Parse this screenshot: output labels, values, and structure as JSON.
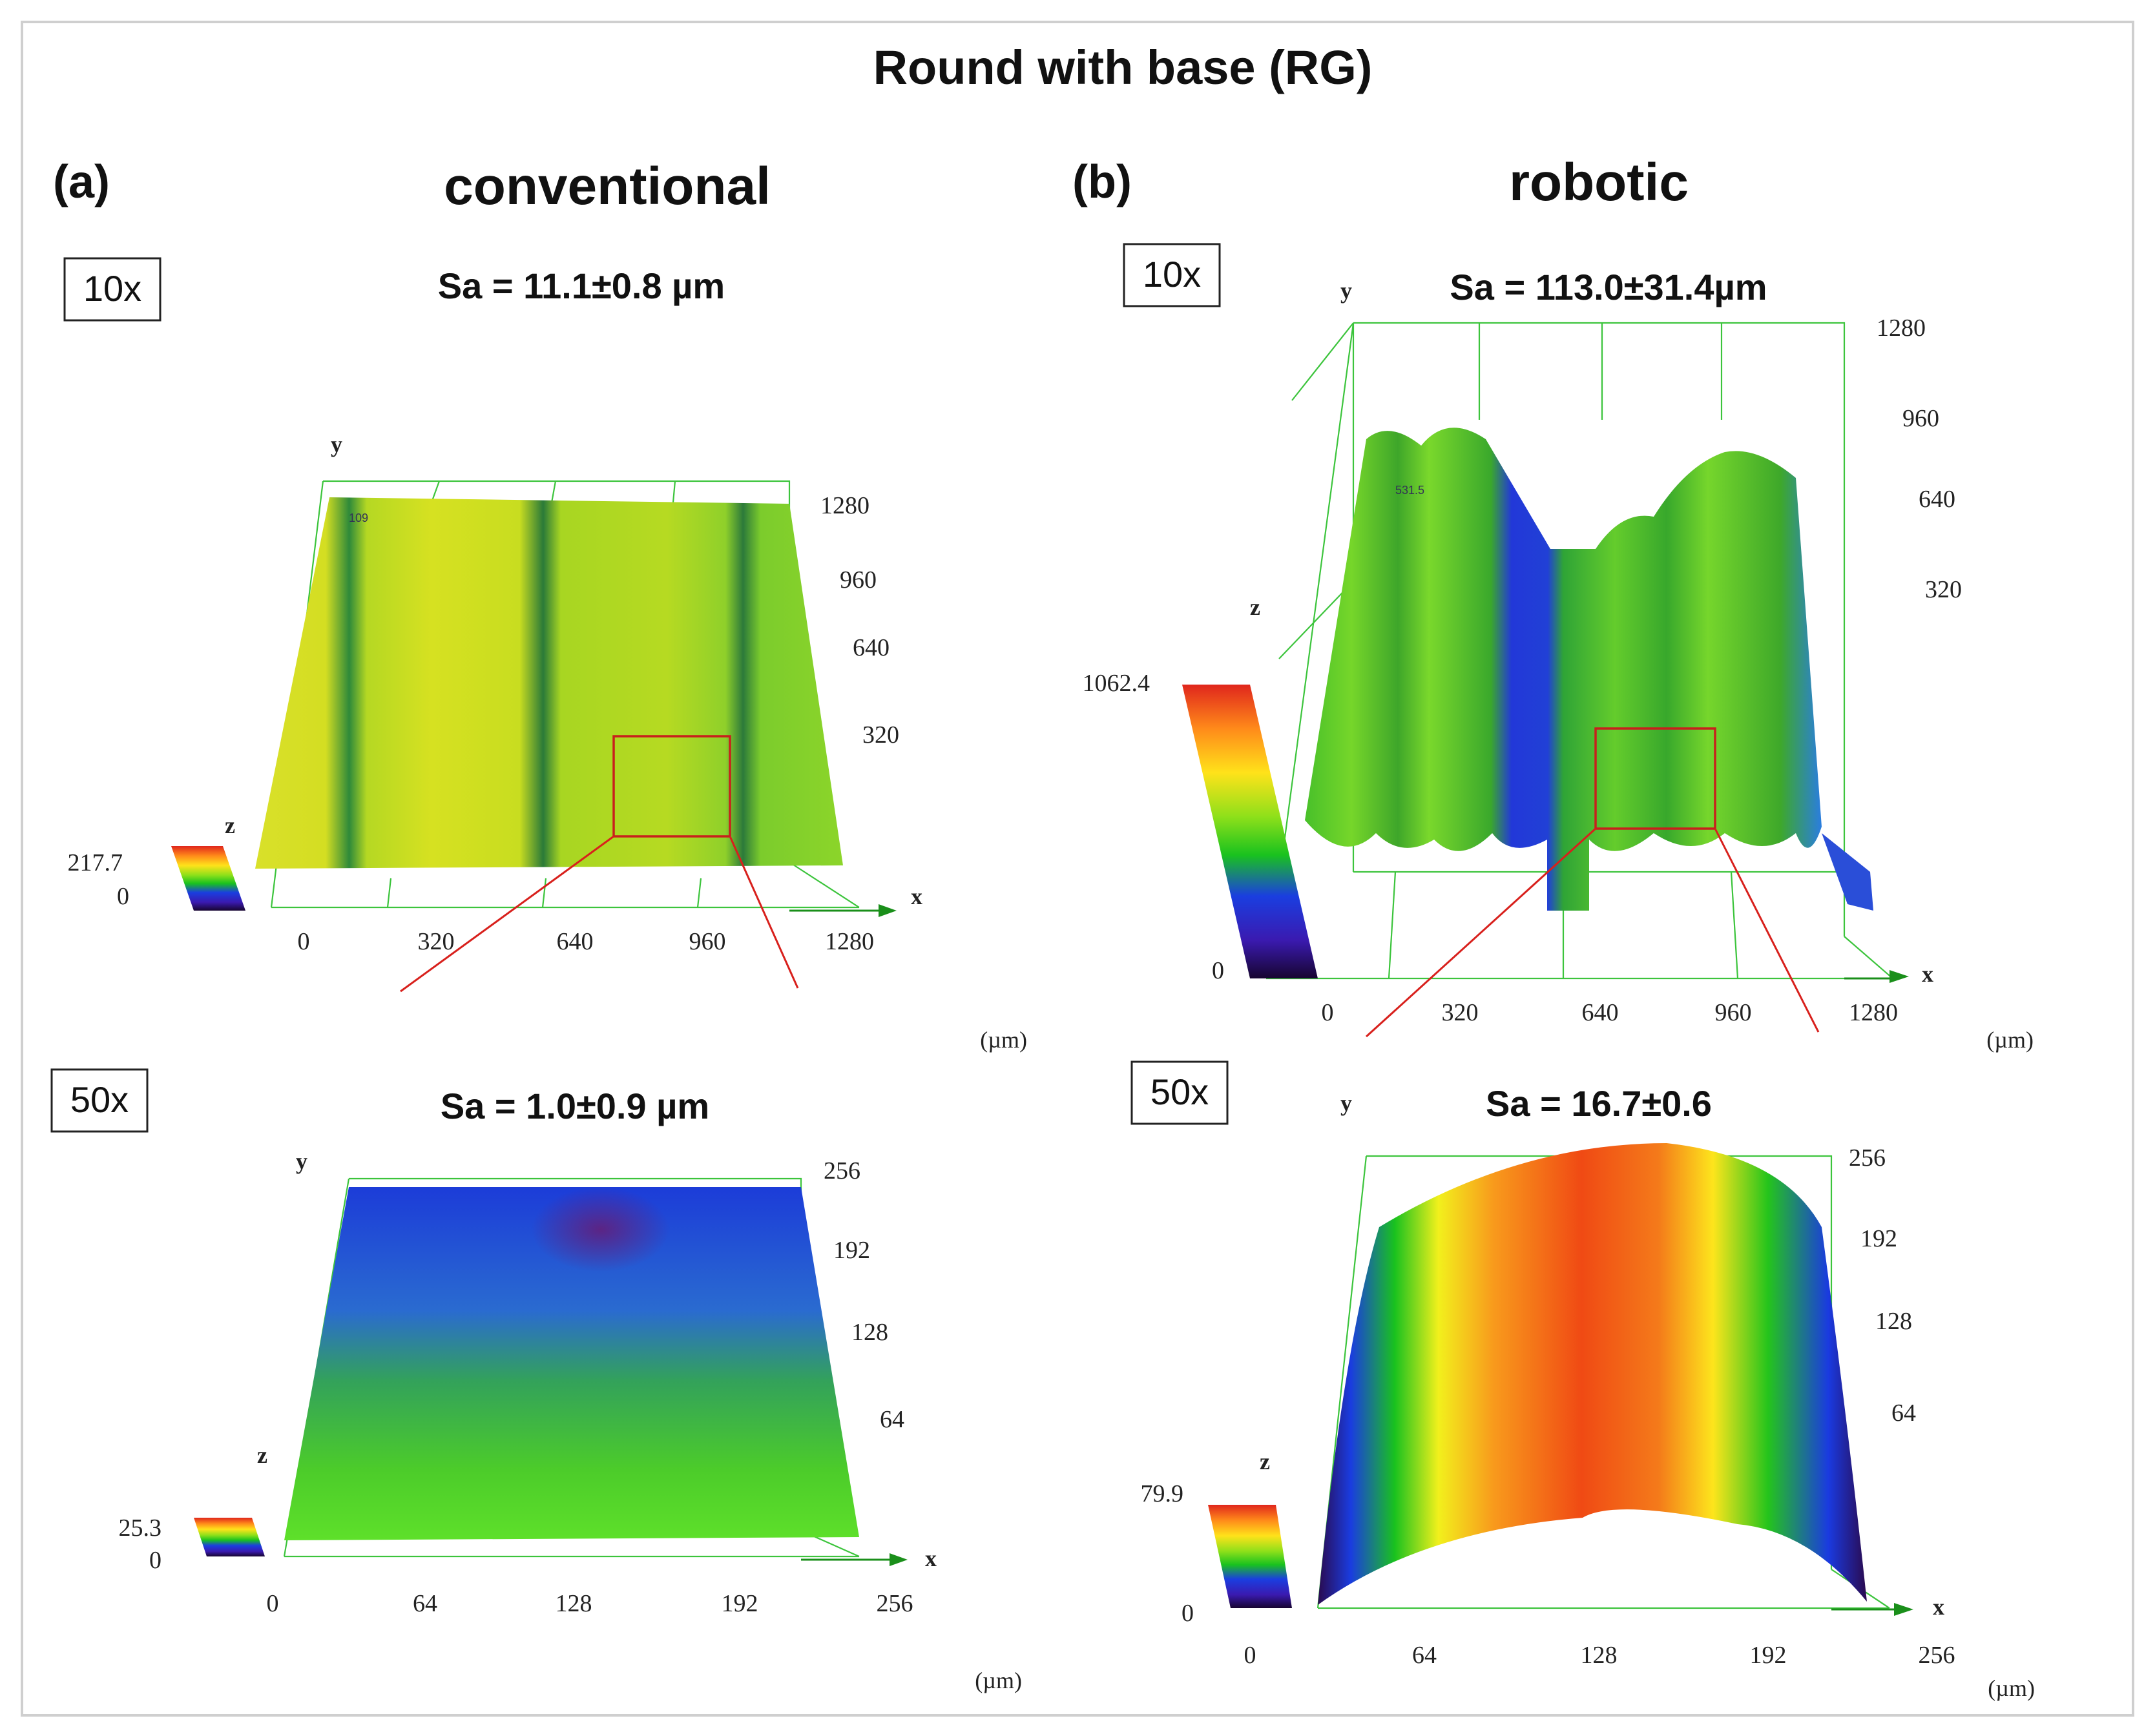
{
  "figure": {
    "title": "Round with base (RG)",
    "unit_label": "(µm)",
    "colors": {
      "grid": "#3cc43c",
      "roi_box": "#c8201c",
      "axis_arrow": "#1a8f1a"
    }
  },
  "panels": [
    {
      "id": "a",
      "label": "(a)",
      "heading": "conventional",
      "views": [
        {
          "magnification": "10x",
          "sa": "Sa = 11.1±0.8 µm",
          "x_ticks": [
            "0",
            "320",
            "640",
            "960",
            "1280"
          ],
          "y_ticks": [
            "1280",
            "960",
            "640",
            "320"
          ],
          "z_max": "217.7",
          "z_min": "0",
          "corner_value": "109",
          "x_axis_label": "x",
          "y_axis_label": "y",
          "z_axis_label": "z",
          "unit": "(µm)"
        },
        {
          "magnification": "50x",
          "sa": "Sa = 1.0±0.9 µm",
          "x_ticks": [
            "0",
            "64",
            "128",
            "192",
            "256"
          ],
          "y_ticks": [
            "256",
            "192",
            "128",
            "64"
          ],
          "z_max": "25.3",
          "z_min": "0",
          "x_axis_label": "x",
          "y_axis_label": "y",
          "z_axis_label": "z",
          "unit": "(µm)"
        }
      ]
    },
    {
      "id": "b",
      "label": "(b)",
      "heading": "robotic",
      "views": [
        {
          "magnification": "10x",
          "sa": "Sa = 113.0±31.4µm",
          "x_ticks": [
            "0",
            "320",
            "640",
            "960",
            "1280"
          ],
          "y_ticks": [
            "1280",
            "960",
            "640",
            "320"
          ],
          "z_max": "1062.4",
          "z_min": "0",
          "corner_value": "531.5",
          "x_axis_label": "x",
          "y_axis_label": "y",
          "z_axis_label": "z",
          "unit": "(µm)"
        },
        {
          "magnification": "50x",
          "sa": "Sa = 16.7±0.6",
          "x_ticks": [
            "0",
            "64",
            "128",
            "192",
            "256"
          ],
          "y_ticks": [
            "256",
            "192",
            "128",
            "64"
          ],
          "z_max": "79.9",
          "z_min": "0",
          "x_axis_label": "x",
          "y_axis_label": "y",
          "z_axis_label": "z",
          "unit": "(µm)"
        }
      ]
    }
  ]
}
